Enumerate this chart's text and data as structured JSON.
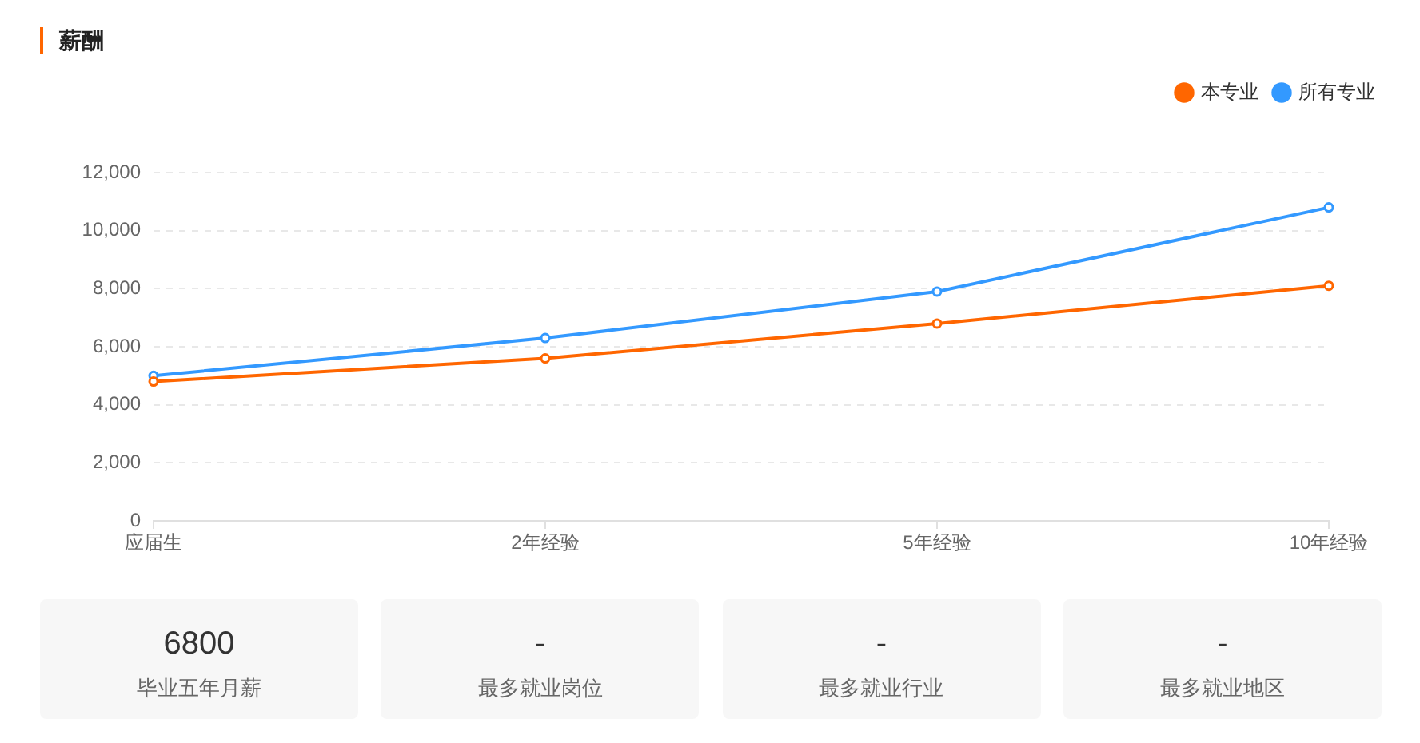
{
  "chart_data": [
    {
      "type": "line",
      "title": "薪酬",
      "categories": [
        "应届生",
        "2年经验",
        "5年经验",
        "10年经验"
      ],
      "series": [
        {
          "name": "本专业",
          "color": "#ff6600",
          "values": [
            4800,
            5600,
            6800,
            8100
          ]
        },
        {
          "name": "所有专业",
          "color": "#3399ff",
          "values": [
            5000,
            6300,
            7900,
            10800
          ]
        }
      ],
      "ylim": [
        0,
        12000
      ],
      "yticks": [
        0,
        {
          "value": 2000,
          "label": "2,000"
        },
        {
          "value": 4000,
          "label": "4,000"
        },
        {
          "value": 6000,
          "label": "6,000"
        },
        {
          "value": 8000,
          "label": "8,000"
        },
        {
          "value": 10000,
          "label": "10,000"
        },
        {
          "value": 12000,
          "label": "12,000"
        }
      ],
      "grid": "y",
      "legend": "top right",
      "marker": "circle",
      "line_style": "solid"
    },
    {
      "type": "other",
      "title": "毕业五年月薪",
      "annotations": [
        "6800"
      ]
    },
    {
      "type": "other",
      "title": "最多就业岗位",
      "annotations": [
        "-"
      ]
    },
    {
      "type": "other",
      "title": "最多就业行业",
      "annotations": [
        "-"
      ]
    },
    {
      "type": "other",
      "title": "最多就业地区",
      "annotations": [
        "-"
      ]
    }
  ]
}
